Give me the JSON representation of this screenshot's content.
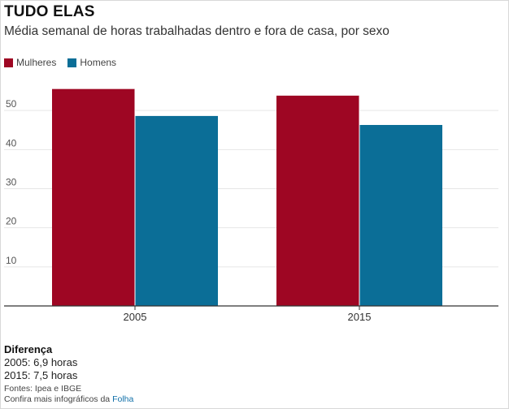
{
  "chart_data": {
    "type": "bar",
    "title": "TUDO ELAS",
    "subtitle": "Média semanal de horas trabalhadas dentro e fora de casa, por sexo",
    "categories": [
      "2005",
      "2015"
    ],
    "series": [
      {
        "name": "Mulheres",
        "values": [
          55.5,
          53.8
        ],
        "color": "#9e0623"
      },
      {
        "name": "Homens",
        "values": [
          48.6,
          46.3
        ],
        "color": "#0b6e97"
      }
    ],
    "xlabel": "",
    "ylabel": "",
    "ylim": [
      0,
      60
    ],
    "yticks": [
      10,
      20,
      30,
      40,
      50
    ],
    "yticks_labels": [
      "10",
      "20",
      "30",
      "40",
      "50"
    ],
    "grid": true,
    "legend": "top-left"
  },
  "footer": {
    "diff_title": "Diferença",
    "diff_lines": [
      "2005: 6,9 horas",
      "2015: 7,5 horas"
    ],
    "sources": "Fontes: Ipea e IBGE",
    "more_prefix": "Confira mais infográficos da ",
    "more_link": "Folha"
  }
}
